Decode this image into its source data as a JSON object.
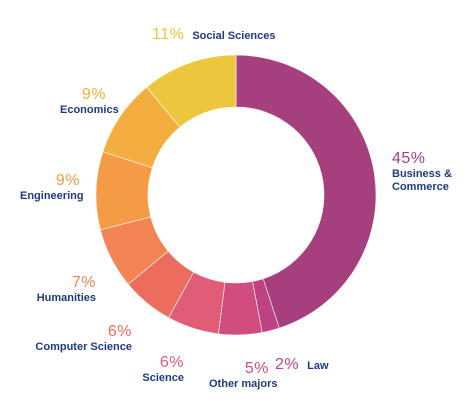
{
  "chart_data": {
    "type": "pie",
    "donut": true,
    "title": "",
    "categories": [
      "Business & Commerce",
      "Law",
      "Other majors",
      "Science",
      "Computer Science",
      "Humanities",
      "Engineering",
      "Economics",
      "Social Sciences"
    ],
    "values": [
      45,
      2,
      5,
      6,
      6,
      7,
      9,
      9,
      11
    ],
    "labels": [
      "45%",
      "2%",
      "5%",
      "6%",
      "6%",
      "7%",
      "9%",
      "9%",
      "11%"
    ],
    "colors": [
      "#a63f7e",
      "#bf4282",
      "#d24d7f",
      "#e15c76",
      "#ec6c5d",
      "#f38554",
      "#f69b45",
      "#f4ad3f",
      "#ecc63c"
    ],
    "label_color": "#1f3b82"
  }
}
